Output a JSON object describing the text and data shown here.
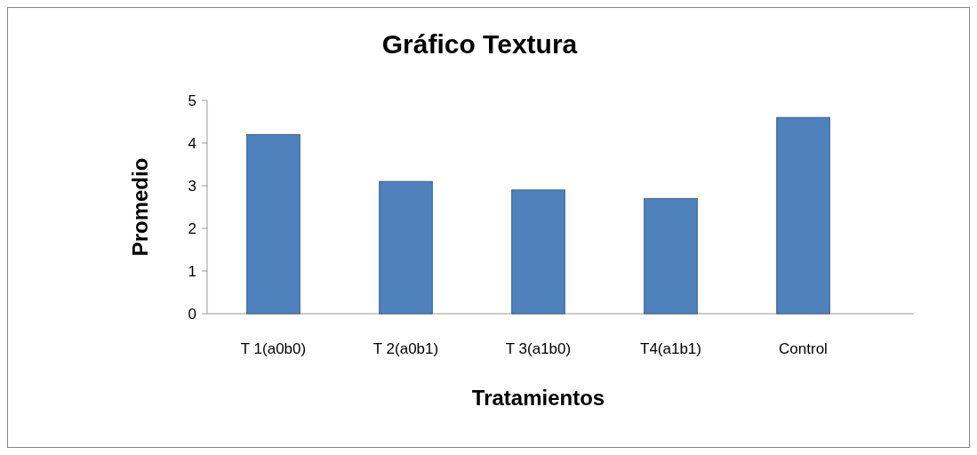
{
  "chart_data": {
    "type": "bar",
    "title": "Gráfico Textura",
    "xlabel": "Tratamientos",
    "ylabel": "Promedio",
    "categories": [
      "T 1(a0b0)",
      "T 2(a0b1)",
      "T 3(a1b0)",
      "T4(a1b1)",
      "Control"
    ],
    "values": [
      4.2,
      3.1,
      2.9,
      2.7,
      4.6
    ],
    "color": "#4f81bd",
    "ylim": [
      0,
      5
    ],
    "yticks": [
      0,
      1,
      2,
      3,
      4,
      5
    ],
    "grid": false
  }
}
